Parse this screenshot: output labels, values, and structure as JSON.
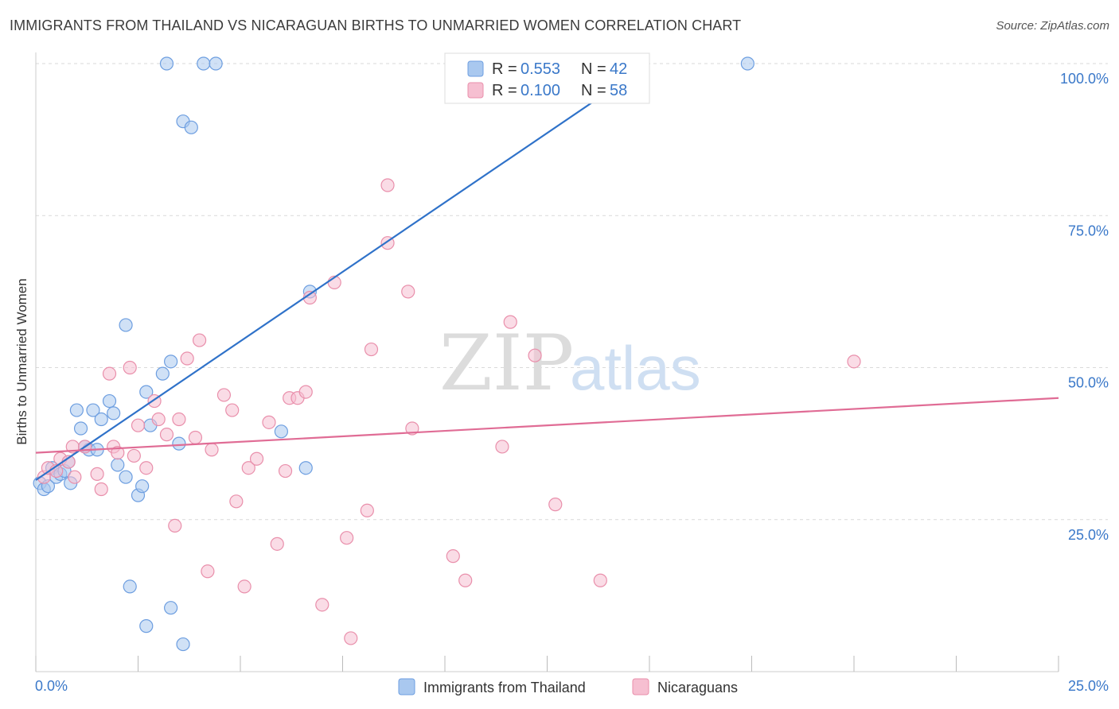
{
  "header": {
    "title": "IMMIGRANTS FROM THAILAND VS NICARAGUAN BIRTHS TO UNMARRIED WOMEN CORRELATION CHART",
    "source": "Source: ZipAtlas.com"
  },
  "watermark": {
    "zip": "ZIP",
    "atlas": "atlas"
  },
  "colors": {
    "blue_fill": "#a9c8ef",
    "blue_stroke": "#6d9ee0",
    "blue_line": "#2f72c9",
    "pink_fill": "#f6bfd1",
    "pink_stroke": "#e98fab",
    "pink_line": "#e06c95",
    "axis_text": "#3a78c9",
    "grid": "#d9d9d9"
  },
  "legend": {
    "r_label": "R =",
    "n_label": "N =",
    "series": [
      {
        "r": "0.553",
        "n": "42"
      },
      {
        "r": "0.100",
        "n": "58"
      }
    ]
  },
  "bottom_legend": [
    "Immigrants from Thailand",
    "Nicaraguans"
  ],
  "chart_data": {
    "type": "scatter",
    "xlabel": "",
    "ylabel": "Births to Unmarried Women",
    "xlim": [
      0,
      25
    ],
    "ylim": [
      0,
      100
    ],
    "x_tick_labels": [
      "0.0%",
      "25.0%"
    ],
    "y_ticks": [
      25,
      50,
      75,
      100
    ],
    "y_tick_labels": [
      "25.0%",
      "50.0%",
      "75.0%",
      "100.0%"
    ],
    "grid": true,
    "legend_position": "top-center",
    "series": [
      {
        "name": "Immigrants from Thailand",
        "r": 0.553,
        "n": 42,
        "points": [
          [
            0.1,
            31
          ],
          [
            0.2,
            30
          ],
          [
            0.3,
            30.5
          ],
          [
            0.4,
            33.5
          ],
          [
            0.5,
            32
          ],
          [
            0.6,
            32.5
          ],
          [
            0.7,
            33
          ],
          [
            0.8,
            34.5
          ],
          [
            0.85,
            31
          ],
          [
            1.0,
            43
          ],
          [
            1.1,
            40
          ],
          [
            1.2,
            37
          ],
          [
            1.3,
            36.5
          ],
          [
            1.5,
            36.5
          ],
          [
            1.4,
            43
          ],
          [
            1.6,
            41.5
          ],
          [
            1.8,
            44.5
          ],
          [
            1.9,
            42.5
          ],
          [
            2.0,
            34
          ],
          [
            2.2,
            32
          ],
          [
            2.5,
            29
          ],
          [
            2.6,
            30.5
          ],
          [
            2.7,
            46
          ],
          [
            2.8,
            40.5
          ],
          [
            3.1,
            49
          ],
          [
            3.3,
            51
          ],
          [
            3.5,
            37.5
          ],
          [
            2.2,
            57
          ],
          [
            2.3,
            14
          ],
          [
            2.7,
            7.5
          ],
          [
            3.3,
            10.5
          ],
          [
            3.6,
            4.5
          ],
          [
            3.6,
            90.5
          ],
          [
            3.8,
            89.5
          ],
          [
            3.2,
            100
          ],
          [
            4.1,
            100
          ],
          [
            4.4,
            100
          ],
          [
            6.0,
            39.5
          ],
          [
            6.6,
            33.5
          ],
          [
            6.7,
            62.5
          ],
          [
            17.4,
            100
          ],
          [
            11.6,
            100
          ]
        ],
        "trend": {
          "x": [
            0,
            15
          ],
          "y": [
            31.5,
            100
          ]
        }
      },
      {
        "name": "Nicaraguans",
        "r": 0.1,
        "n": 58,
        "points": [
          [
            0.2,
            32
          ],
          [
            0.3,
            33.5
          ],
          [
            0.5,
            33
          ],
          [
            0.6,
            35
          ],
          [
            0.8,
            34.5
          ],
          [
            0.9,
            37
          ],
          [
            0.95,
            32
          ],
          [
            1.2,
            37
          ],
          [
            1.5,
            32.5
          ],
          [
            1.6,
            30
          ],
          [
            1.8,
            49
          ],
          [
            1.9,
            37
          ],
          [
            2.0,
            36
          ],
          [
            2.3,
            50
          ],
          [
            2.4,
            35.5
          ],
          [
            2.5,
            40.5
          ],
          [
            2.7,
            33.5
          ],
          [
            2.9,
            44.5
          ],
          [
            3.0,
            41.5
          ],
          [
            3.2,
            39
          ],
          [
            3.4,
            24
          ],
          [
            3.5,
            41.5
          ],
          [
            3.7,
            51.5
          ],
          [
            3.9,
            38.5
          ],
          [
            4.0,
            54.5
          ],
          [
            4.2,
            16.5
          ],
          [
            4.3,
            36.5
          ],
          [
            4.6,
            45.5
          ],
          [
            4.8,
            43
          ],
          [
            4.9,
            28
          ],
          [
            5.1,
            14
          ],
          [
            5.2,
            33.5
          ],
          [
            5.4,
            35
          ],
          [
            5.7,
            41
          ],
          [
            5.9,
            21
          ],
          [
            6.1,
            33
          ],
          [
            6.2,
            45
          ],
          [
            6.4,
            45
          ],
          [
            6.6,
            46
          ],
          [
            6.7,
            61.5
          ],
          [
            7.0,
            11
          ],
          [
            7.3,
            64
          ],
          [
            7.6,
            22
          ],
          [
            7.7,
            5.5
          ],
          [
            8.1,
            26.5
          ],
          [
            8.2,
            53
          ],
          [
            8.6,
            80
          ],
          [
            8.6,
            70.5
          ],
          [
            9.1,
            62.5
          ],
          [
            9.2,
            40
          ],
          [
            10.2,
            19
          ],
          [
            10.5,
            15
          ],
          [
            11.4,
            37
          ],
          [
            11.6,
            57.5
          ],
          [
            12.2,
            52
          ],
          [
            12.7,
            27.5
          ],
          [
            13.8,
            15
          ],
          [
            20.0,
            51
          ]
        ],
        "trend": {
          "x": [
            0,
            25
          ],
          "y": [
            36,
            45
          ]
        }
      }
    ]
  }
}
